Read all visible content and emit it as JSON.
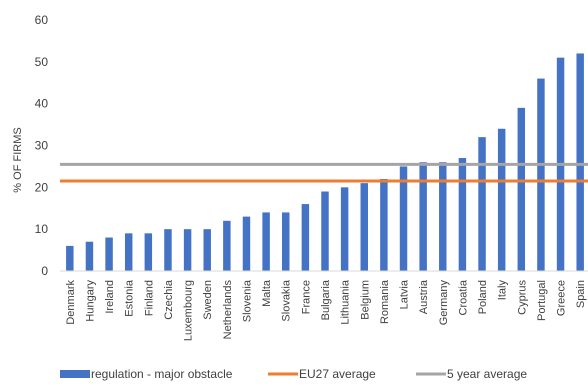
{
  "chart_data": {
    "type": "bar",
    "title": "",
    "xlabel": "",
    "ylabel": "% OF FIRMS",
    "ylim": [
      0,
      60
    ],
    "yticks": [
      0,
      10,
      20,
      30,
      40,
      50,
      60
    ],
    "grid": false,
    "legend_position": "bottom",
    "categories": [
      "Denmark",
      "Hungary",
      "Ireland",
      "Estonia",
      "Finland",
      "Czechia",
      "Luxembourg",
      "Sweden",
      "Netherlands",
      "Slovenia",
      "Malta",
      "Slovakia",
      "France",
      "Bulgaria",
      "Lithuania",
      "Belgium",
      "Romania",
      "Latvia",
      "Austria",
      "Germany",
      "Croatia",
      "Poland",
      "Italy",
      "Cyprus",
      "Portugal",
      "Greece",
      "Spain"
    ],
    "series": [
      {
        "name": "regulation - major obstacle",
        "type": "bar",
        "color": "#4472C4",
        "values": [
          6,
          7,
          8,
          9,
          9,
          10,
          10,
          10,
          12,
          13,
          14,
          14,
          16,
          19,
          20,
          21,
          22,
          25,
          26,
          26,
          27,
          32,
          34,
          39,
          46,
          51,
          52
        ]
      },
      {
        "name": "EU27 average",
        "type": "hline",
        "color": "#ED7D31",
        "value": 21.5
      },
      {
        "name": "5 year average",
        "type": "hline",
        "color": "#A5A5A5",
        "value": 25.5
      }
    ]
  }
}
